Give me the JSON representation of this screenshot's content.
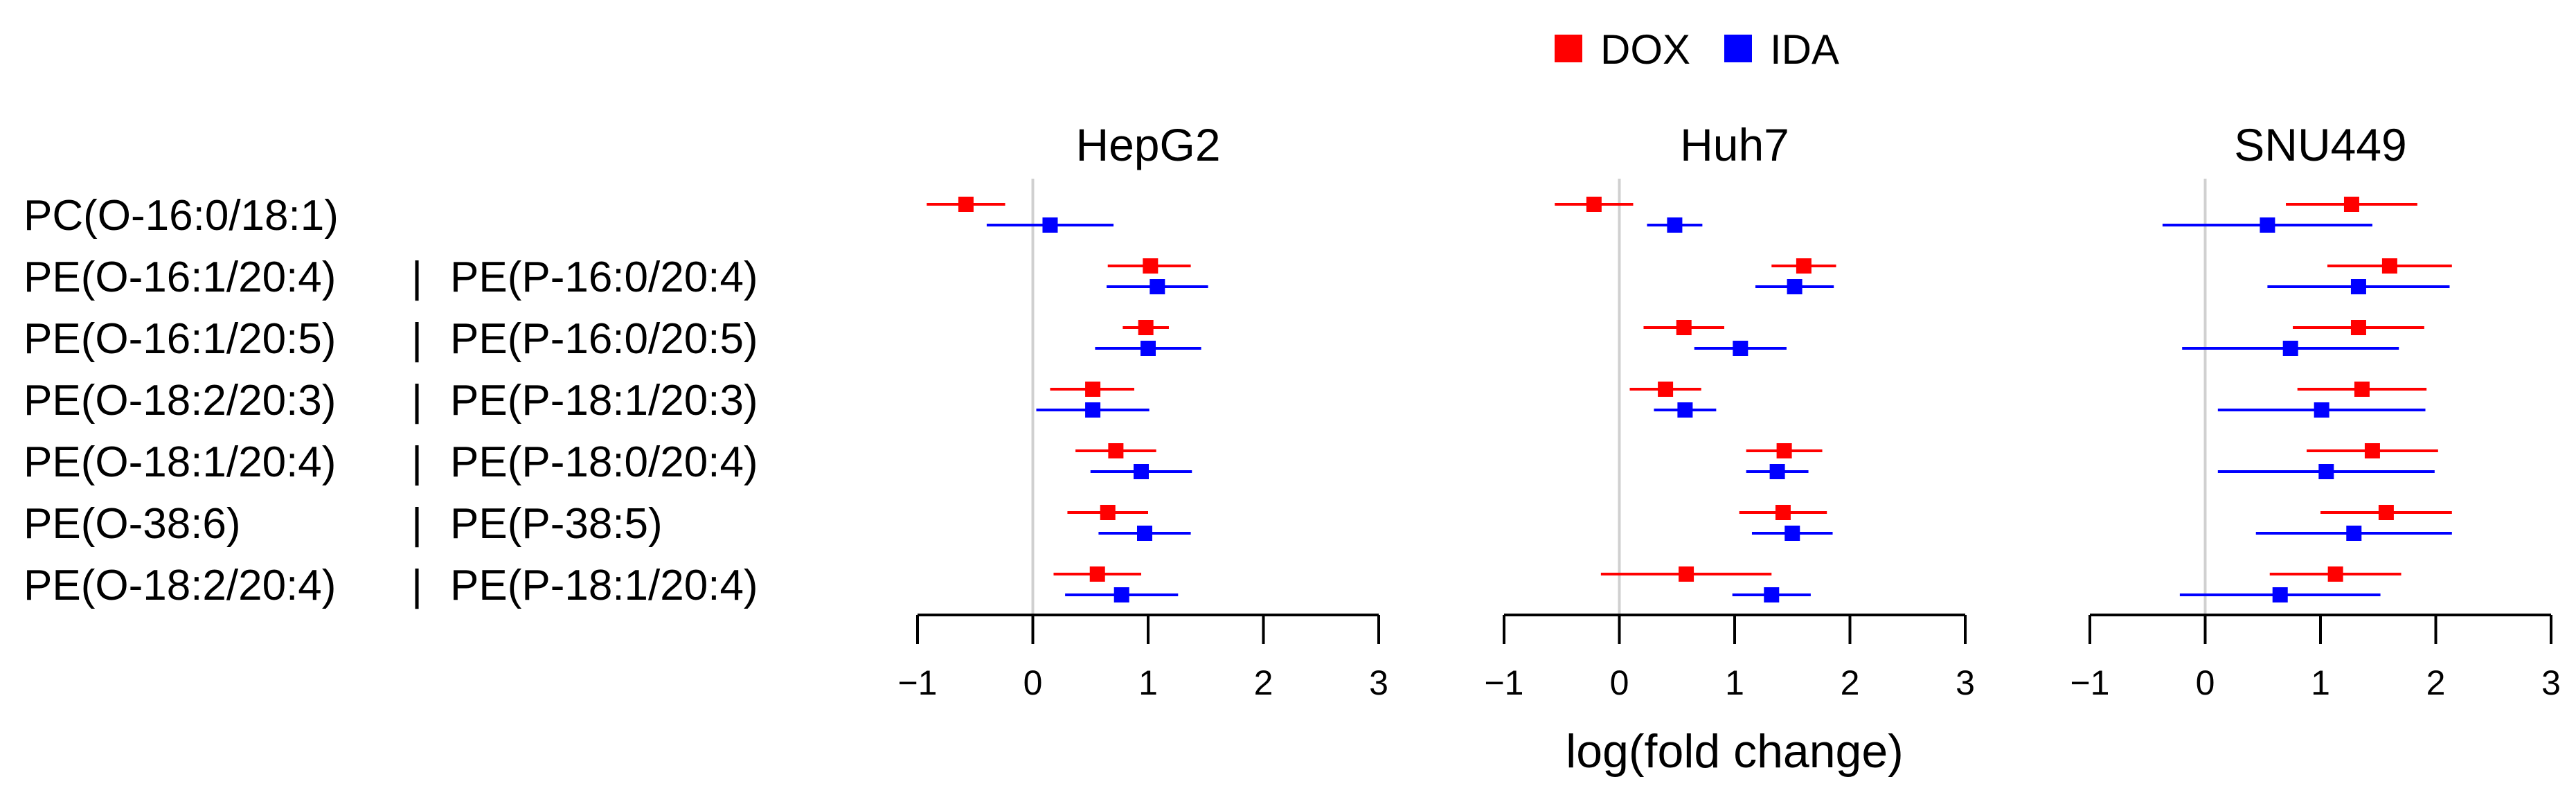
{
  "chart_data": {
    "type": "forest",
    "xlabel": "log(fold change)",
    "xlim": [
      -1,
      3
    ],
    "xticks": [
      -1,
      0,
      1,
      2,
      3
    ],
    "xtick_labels": [
      "−1",
      "0",
      "1",
      "2",
      "3"
    ],
    "legend": {
      "position": "top-center",
      "entries": [
        {
          "name": "DOX",
          "color": "#ff0000"
        },
        {
          "name": "IDA",
          "color": "#0000ff"
        }
      ]
    },
    "row_labels": [
      {
        "left": "PC(O-16:0/18:1)",
        "sep": "",
        "right": ""
      },
      {
        "left": "PE(O-16:1/20:4)",
        "sep": "|",
        "right": "PE(P-16:0/20:4)"
      },
      {
        "left": "PE(O-16:1/20:5)",
        "sep": "|",
        "right": "PE(P-16:0/20:5)"
      },
      {
        "left": "PE(O-18:2/20:3)",
        "sep": "|",
        "right": "PE(P-18:1/20:3)"
      },
      {
        "left": "PE(O-18:1/20:4)",
        "sep": "|",
        "right": "PE(P-18:0/20:4)"
      },
      {
        "left": "PE(O-38:6)",
        "sep": "|",
        "right": "PE(P-38:5)"
      },
      {
        "left": "PE(O-18:2/20:4)",
        "sep": "|",
        "right": "PE(P-18:1/20:4)"
      }
    ],
    "panels": [
      {
        "title": "HepG2",
        "series": [
          {
            "name": "DOX",
            "color": "#ff0000",
            "estimates": [
              -0.58,
              1.02,
              0.98,
              0.52,
              0.72,
              0.65,
              0.56
            ],
            "lower": [
              -0.92,
              0.65,
              0.78,
              0.15,
              0.37,
              0.3,
              0.18
            ],
            "upper": [
              -0.24,
              1.37,
              1.18,
              0.88,
              1.07,
              1.0,
              0.94
            ]
          },
          {
            "name": "IDA",
            "color": "#0000ff",
            "estimates": [
              0.15,
              1.08,
              1.0,
              0.52,
              0.94,
              0.97,
              0.77
            ],
            "lower": [
              -0.4,
              0.64,
              0.54,
              0.03,
              0.5,
              0.57,
              0.28
            ],
            "upper": [
              0.7,
              1.52,
              1.46,
              1.01,
              1.38,
              1.37,
              1.26
            ]
          }
        ]
      },
      {
        "title": "Huh7",
        "series": [
          {
            "name": "DOX",
            "color": "#ff0000",
            "estimates": [
              -0.22,
              1.6,
              0.56,
              0.4,
              1.43,
              1.42,
              0.58
            ],
            "lower": [
              -0.56,
              1.32,
              0.21,
              0.09,
              1.1,
              1.04,
              -0.16
            ],
            "upper": [
              0.12,
              1.88,
              0.91,
              0.71,
              1.76,
              1.8,
              1.32
            ]
          },
          {
            "name": "IDA",
            "color": "#0000ff",
            "estimates": [
              0.48,
              1.52,
              1.05,
              0.57,
              1.37,
              1.5,
              1.32
            ],
            "lower": [
              0.24,
              1.18,
              0.65,
              0.3,
              1.1,
              1.15,
              0.98
            ],
            "upper": [
              0.72,
              1.86,
              1.45,
              0.84,
              1.64,
              1.85,
              1.66
            ]
          }
        ]
      },
      {
        "title": "SNU449",
        "series": [
          {
            "name": "DOX",
            "color": "#ff0000",
            "estimates": [
              1.27,
              1.6,
              1.33,
              1.36,
              1.45,
              1.57,
              1.13
            ],
            "lower": [
              0.7,
              1.06,
              0.76,
              0.8,
              0.88,
              1.0,
              0.56
            ],
            "upper": [
              1.84,
              2.14,
              1.9,
              1.92,
              2.02,
              2.14,
              1.7
            ]
          },
          {
            "name": "IDA",
            "color": "#0000ff",
            "estimates": [
              0.54,
              1.33,
              0.74,
              1.01,
              1.05,
              1.29,
              0.65
            ],
            "lower": [
              -0.37,
              0.54,
              -0.2,
              0.11,
              0.11,
              0.44,
              -0.22
            ],
            "upper": [
              1.45,
              2.12,
              1.68,
              1.91,
              1.99,
              2.14,
              1.52
            ]
          }
        ]
      }
    ]
  }
}
